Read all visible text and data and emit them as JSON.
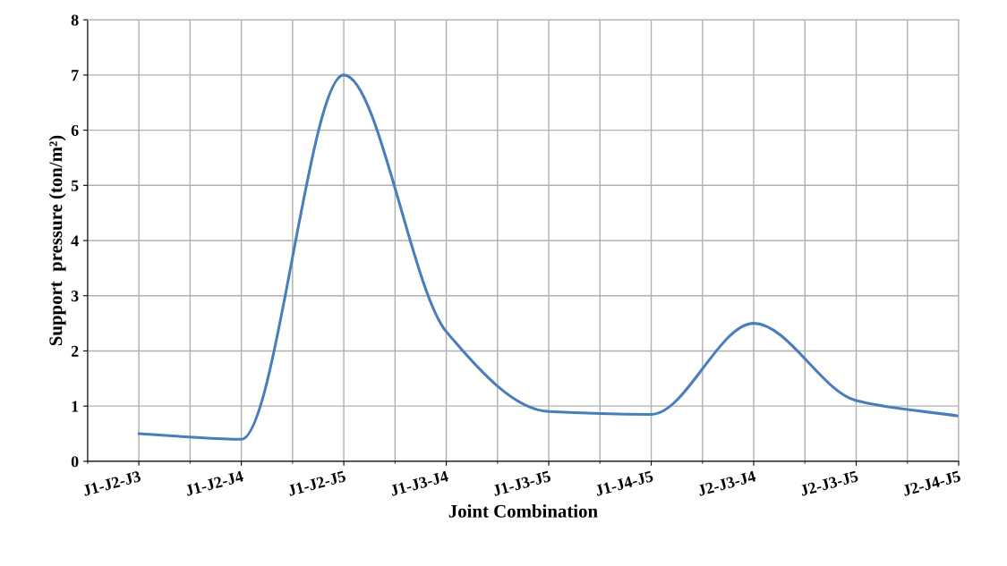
{
  "chart_data": {
    "type": "line",
    "xlabel": "Joint Combination",
    "ylabel": "Support  pressure (ton/m²)",
    "categories": [
      "J1-J2-J3",
      "J1-J2-J4",
      "J1-J2-J5",
      "J1-J3-J4",
      "J1-J3-J5",
      "J1-J4-J5",
      "J2-J3-J4",
      "J2-J3-J5",
      "J2-J4-J5"
    ],
    "series": [
      {
        "color": "#4a7ebb",
        "values": [
          0.5,
          0.4,
          7.0,
          2.35,
          0.9,
          0.85,
          2.5,
          1.1,
          0.82
        ]
      }
    ],
    "ylim": [
      0,
      8
    ],
    "yticks": [
      0,
      1,
      2,
      3,
      4,
      5,
      6,
      7,
      8
    ],
    "grid": true,
    "marker": "none",
    "line_style": "solid"
  }
}
